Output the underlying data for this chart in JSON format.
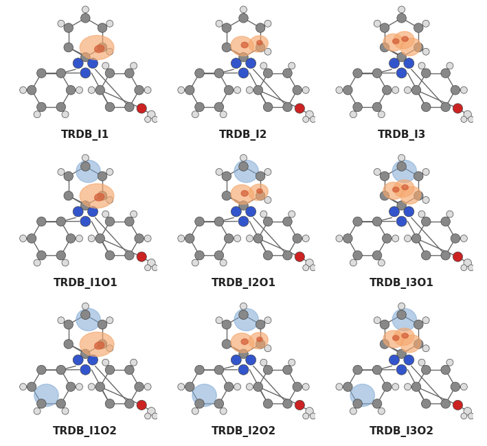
{
  "labels": [
    [
      "TRDB_I1",
      "TRDB_I2",
      "TRDB_I3"
    ],
    [
      "TRDB_I1O1",
      "TRDB_I2O1",
      "TRDB_I3O1"
    ],
    [
      "TRDB_I1O2",
      "TRDB_I2O2",
      "TRDB_I3O2"
    ]
  ],
  "background_color": "#ffffff",
  "label_fontsize": 11,
  "orange_blob_color": "#f5a86e",
  "orange_blob_alpha": 0.65,
  "blue_blob_color": "#7fa8d4",
  "blue_blob_alpha": 0.55,
  "dark_orange_color": "#d4603a",
  "dark_orange_alpha": 0.75,
  "gray_atom": "#888888",
  "white_atom": "#dddddd",
  "blue_atom": "#3355cc",
  "red_atom": "#cc2222",
  "bond_color": "#666666",
  "bond_lw": 1.0,
  "fig_bg": "#ffffff"
}
